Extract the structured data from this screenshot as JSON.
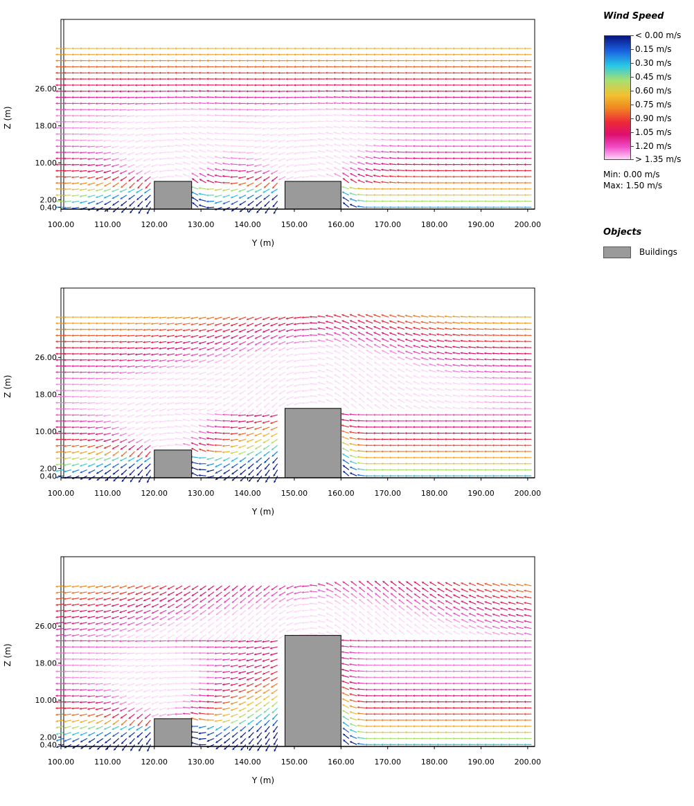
{
  "legend": {
    "title": "Wind Speed",
    "entries": [
      "< 0.00 m/s",
      "0.15  m/s",
      "0.30  m/s",
      "0.45  m/s",
      "0.60  m/s",
      "0.75  m/s",
      "0.90  m/s",
      "1.05  m/s",
      "1.20  m/s",
      "> 1.35 m/s"
    ],
    "min_label": "Min: 0.00 m/s",
    "max_label": "Max: 1.50 m/s",
    "colors": [
      "#081480",
      "#1a60e0",
      "#28c8e8",
      "#a8e070",
      "#f2c030",
      "#f08a20",
      "#ee2838",
      "#dd1070",
      "#f04cc8",
      "#ffd4f8"
    ]
  },
  "objects": {
    "title": "Objects",
    "buildings_label": "Buildings",
    "building_color": "#9a9a9a"
  },
  "chart_data": [
    {
      "type": "vector_field",
      "xlabel": "Y (m)",
      "ylabel": "Z (m)",
      "xticks": [
        "100.00",
        "110.00",
        "120.00",
        "130.00",
        "140.00",
        "150.00",
        "160.00",
        "170.00",
        "180.00",
        "190.00",
        "200.00"
      ],
      "yticks": [
        "0.40",
        "2.00",
        "10.00",
        "18.00",
        "26.00"
      ],
      "ylim": [
        0,
        41
      ],
      "buildings": [
        {
          "y_start": 120,
          "y_end": 128,
          "height": 6
        },
        {
          "y_start": 148,
          "y_end": 160,
          "height": 6
        }
      ]
    },
    {
      "type": "vector_field",
      "xlabel": "Y (m)",
      "ylabel": "Z (m)",
      "xticks": [
        "100.00",
        "110.00",
        "120.00",
        "130.00",
        "140.00",
        "150.00",
        "160.00",
        "170.00",
        "180.00",
        "190.00",
        "200.00"
      ],
      "yticks": [
        "0.40",
        "2.00",
        "10.00",
        "18.00",
        "26.00"
      ],
      "ylim": [
        0,
        41
      ],
      "buildings": [
        {
          "y_start": 120,
          "y_end": 128,
          "height": 6
        },
        {
          "y_start": 148,
          "y_end": 160,
          "height": 15
        }
      ]
    },
    {
      "type": "vector_field",
      "xlabel": "Y (m)",
      "ylabel": "Z (m)",
      "xticks": [
        "100.00",
        "110.00",
        "120.00",
        "130.00",
        "140.00",
        "150.00",
        "160.00",
        "170.00",
        "180.00",
        "190.00",
        "200.00"
      ],
      "yticks": [
        "0.40",
        "2.00",
        "10.00",
        "18.00",
        "26.00"
      ],
      "ylim": [
        0,
        41
      ],
      "buildings": [
        {
          "y_start": 120,
          "y_end": 128,
          "height": 6
        },
        {
          "y_start": 148,
          "y_end": 160,
          "height": 24
        }
      ]
    }
  ]
}
